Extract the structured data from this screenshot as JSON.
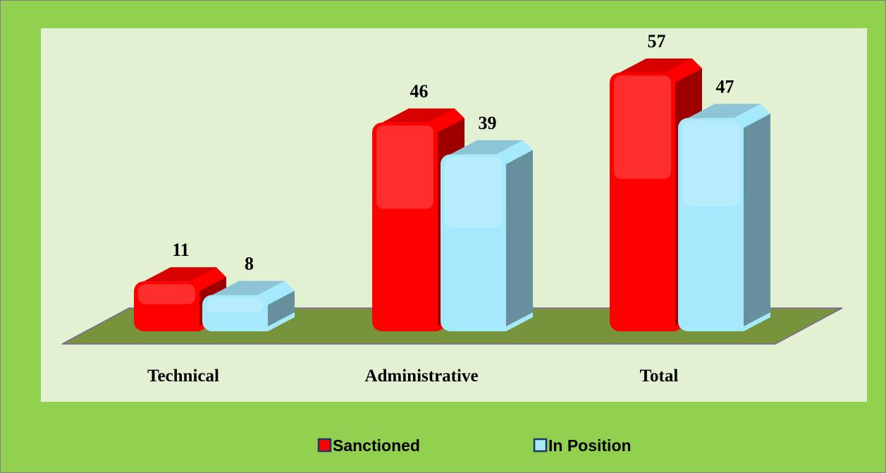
{
  "chart_data": {
    "type": "bar",
    "categories": [
      "Technical",
      "Administrative",
      "Total"
    ],
    "series": [
      {
        "name": "Sanctioned",
        "color": "#ff0000",
        "values": [
          11,
          46,
          57
        ]
      },
      {
        "name": "In Position",
        "color": "#a6e8fc",
        "values": [
          8,
          39,
          47
        ]
      }
    ]
  }
}
